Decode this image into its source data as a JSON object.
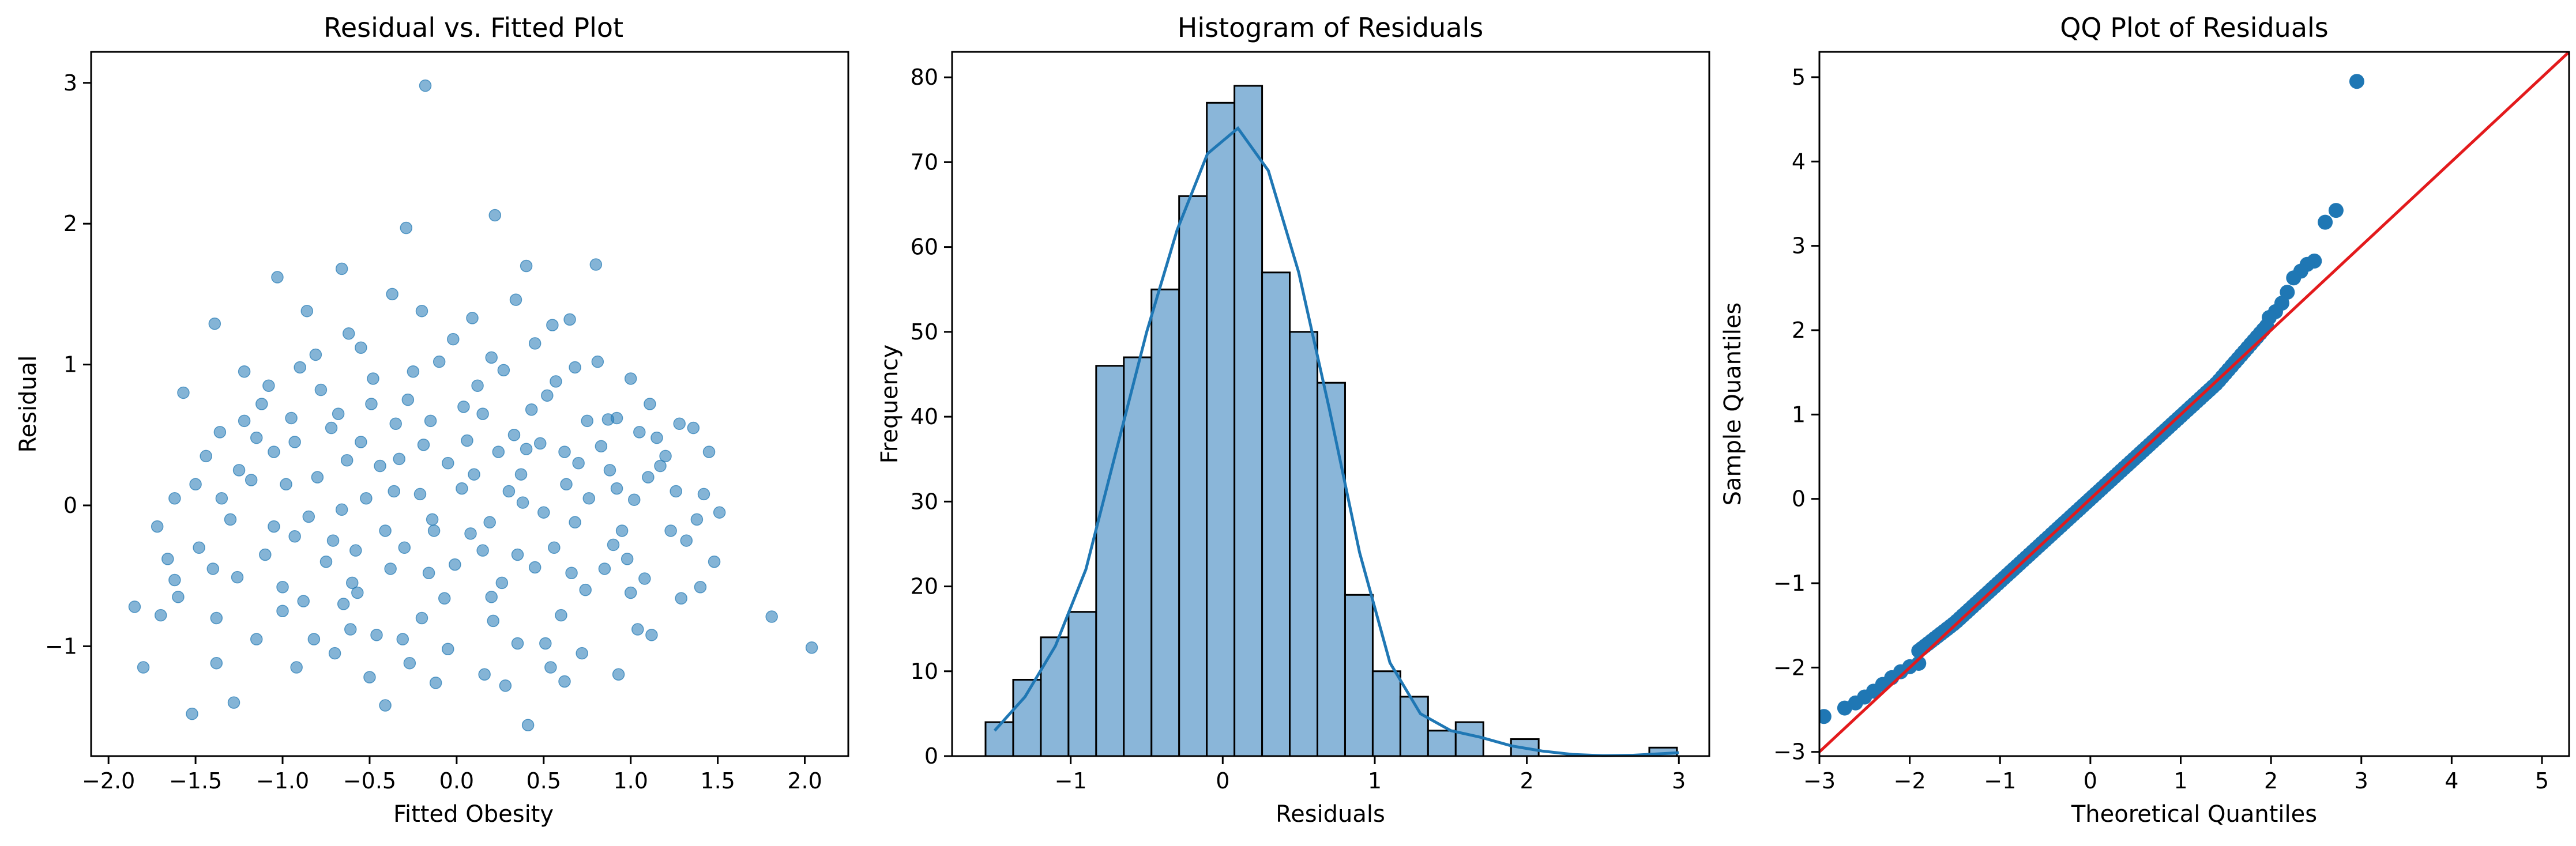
{
  "chart_data": [
    {
      "type": "scatter",
      "title": "Residual vs. Fitted Plot",
      "xlabel": "Fitted Obesity",
      "ylabel": "Residual",
      "xlim": [
        -2.1,
        2.25
      ],
      "ylim": [
        -1.78,
        3.22
      ],
      "xticks": [
        -2.0,
        -1.5,
        -1.0,
        -0.5,
        0.0,
        0.5,
        1.0,
        1.5,
        2.0
      ],
      "xtick_labels": [
        "−2.0",
        "−1.5",
        "−1.0",
        "−0.5",
        "0.0",
        "0.5",
        "1.0",
        "1.5",
        "2.0"
      ],
      "yticks": [
        -1,
        0,
        1,
        2,
        3
      ],
      "ytick_labels": [
        "−1",
        "0",
        "1",
        "2",
        "3"
      ],
      "marker_color": "#1f77b4",
      "marker_alpha": 0.55,
      "grid": false,
      "points": [
        [
          -0.18,
          2.98
        ],
        [
          0.22,
          2.06
        ],
        [
          -0.29,
          1.97
        ],
        [
          0.4,
          1.7
        ],
        [
          -0.66,
          1.68
        ],
        [
          0.8,
          1.71
        ],
        [
          -1.03,
          1.62
        ],
        [
          -1.39,
          1.29
        ],
        [
          -0.37,
          1.5
        ],
        [
          0.09,
          1.33
        ],
        [
          0.65,
          1.32
        ],
        [
          -0.86,
          1.38
        ],
        [
          0.34,
          1.46
        ],
        [
          -1.85,
          -0.72
        ],
        [
          -1.62,
          -0.53
        ],
        [
          1.81,
          -0.79
        ],
        [
          2.04,
          -1.01
        ],
        [
          -1.52,
          -1.48
        ],
        [
          0.41,
          -1.56
        ],
        [
          -0.41,
          -1.42
        ],
        [
          -0.12,
          -1.26
        ],
        [
          -1.38,
          -1.12
        ],
        [
          -1.8,
          -1.15
        ],
        [
          -1.57,
          0.8
        ],
        [
          -1.36,
          0.52
        ],
        [
          -1.62,
          0.05
        ],
        [
          -1.72,
          -0.15
        ],
        [
          -1.66,
          -0.38
        ],
        [
          -1.48,
          -0.3
        ],
        [
          -1.26,
          -0.51
        ],
        [
          -1.22,
          0.95
        ],
        [
          -1.12,
          0.72
        ],
        [
          -1.05,
          0.38
        ],
        [
          -0.98,
          0.15
        ],
        [
          -0.93,
          -0.22
        ],
        [
          -0.88,
          -0.68
        ],
        [
          -0.81,
          1.07
        ],
        [
          -0.72,
          0.55
        ],
        [
          -0.66,
          -0.03
        ],
        [
          -0.61,
          -0.88
        ],
        [
          -0.55,
          1.12
        ],
        [
          -0.49,
          0.72
        ],
        [
          -0.44,
          0.28
        ],
        [
          -0.38,
          -0.45
        ],
        [
          -0.31,
          -0.95
        ],
        [
          -0.25,
          0.95
        ],
        [
          -0.19,
          0.43
        ],
        [
          -0.13,
          -0.18
        ],
        [
          -0.07,
          -0.66
        ],
        [
          -0.02,
          1.18
        ],
        [
          0.04,
          0.7
        ],
        [
          0.1,
          0.22
        ],
        [
          0.15,
          -0.32
        ],
        [
          0.21,
          -0.82
        ],
        [
          0.27,
          0.96
        ],
        [
          0.33,
          0.5
        ],
        [
          0.38,
          0.02
        ],
        [
          0.45,
          -0.44
        ],
        [
          0.51,
          -0.98
        ],
        [
          0.57,
          0.88
        ],
        [
          0.62,
          0.38
        ],
        [
          0.68,
          -0.12
        ],
        [
          0.74,
          -0.6
        ],
        [
          0.81,
          1.02
        ],
        [
          0.87,
          0.61
        ],
        [
          0.92,
          0.12
        ],
        [
          0.98,
          -0.38
        ],
        [
          1.04,
          -0.88
        ],
        [
          1.11,
          0.72
        ],
        [
          1.17,
          0.28
        ],
        [
          1.23,
          -0.18
        ],
        [
          1.29,
          -0.66
        ],
        [
          1.36,
          0.55
        ],
        [
          1.42,
          0.08
        ],
        [
          1.48,
          -0.4
        ],
        [
          1.45,
          0.38
        ],
        [
          1.51,
          -0.05
        ],
        [
          -1.18,
          0.18
        ],
        [
          -0.93,
          0.45
        ],
        [
          -0.71,
          -0.25
        ],
        [
          -0.52,
          0.05
        ],
        [
          -0.33,
          0.33
        ],
        [
          -0.15,
          0.6
        ],
        [
          0.03,
          0.12
        ],
        [
          0.24,
          0.38
        ],
        [
          0.43,
          0.68
        ],
        [
          0.63,
          0.15
        ],
        [
          0.83,
          0.42
        ],
        [
          1.02,
          0.04
        ],
        [
          -1.3,
          -0.1
        ],
        [
          -1.1,
          -0.35
        ],
        [
          -0.85,
          -0.08
        ],
        [
          -0.63,
          0.32
        ],
        [
          -0.41,
          -0.18
        ],
        [
          -0.21,
          0.08
        ],
        [
          -0.01,
          -0.42
        ],
        [
          0.19,
          -0.12
        ],
        [
          0.37,
          0.22
        ],
        [
          0.56,
          -0.3
        ],
        [
          0.76,
          0.05
        ],
        [
          0.95,
          -0.18
        ],
        [
          1.15,
          0.48
        ],
        [
          -1.44,
          0.35
        ],
        [
          -1.22,
          0.6
        ],
        [
          -1.0,
          -0.58
        ],
        [
          -0.78,
          0.82
        ],
        [
          -0.57,
          -0.62
        ],
        [
          -0.35,
          0.58
        ],
        [
          -0.16,
          -0.48
        ],
        [
          0.06,
          0.46
        ],
        [
          0.26,
          -0.55
        ],
        [
          0.48,
          0.44
        ],
        [
          0.66,
          -0.48
        ],
        [
          0.88,
          0.25
        ],
        [
          1.08,
          -0.52
        ],
        [
          1.26,
          0.1
        ],
        [
          -1.6,
          -0.65
        ],
        [
          -1.38,
          -0.8
        ],
        [
          -1.15,
          -0.95
        ],
        [
          -0.92,
          -1.15
        ],
        [
          -0.7,
          -1.05
        ],
        [
          -0.46,
          -0.92
        ],
        [
          -0.27,
          -1.12
        ],
        [
          -0.05,
          -1.02
        ],
        [
          0.16,
          -1.2
        ],
        [
          0.35,
          -0.98
        ],
        [
          0.54,
          -1.15
        ],
        [
          0.72,
          -1.05
        ],
        [
          0.93,
          -1.2
        ],
        [
          1.12,
          -0.92
        ],
        [
          -1.7,
          -0.78
        ],
        [
          -1.28,
          -1.4
        ],
        [
          -0.2,
          1.38
        ],
        [
          0.55,
          1.28
        ],
        [
          -0.62,
          1.22
        ],
        [
          1.0,
          0.9
        ],
        [
          0.45,
          1.15
        ],
        [
          -0.9,
          0.98
        ],
        [
          0.2,
          1.05
        ],
        [
          -0.48,
          0.9
        ],
        [
          1.28,
          0.58
        ],
        [
          -1.25,
          0.25
        ],
        [
          -1.05,
          -0.15
        ],
        [
          -0.8,
          0.2
        ],
        [
          -0.58,
          -0.32
        ],
        [
          -0.36,
          0.1
        ],
        [
          -0.14,
          -0.1
        ],
        [
          0.08,
          -0.2
        ],
        [
          0.3,
          0.1
        ],
        [
          0.5,
          -0.05
        ],
        [
          0.7,
          0.3
        ],
        [
          0.9,
          -0.28
        ],
        [
          1.1,
          0.2
        ],
        [
          1.32,
          -0.25
        ],
        [
          -1.5,
          0.15
        ],
        [
          -1.08,
          0.85
        ],
        [
          -0.68,
          0.65
        ],
        [
          -0.28,
          0.75
        ],
        [
          0.12,
          0.85
        ],
        [
          0.52,
          0.78
        ],
        [
          0.92,
          0.62
        ],
        [
          -1.4,
          -0.45
        ],
        [
          -1.0,
          -0.75
        ],
        [
          -0.6,
          -0.55
        ],
        [
          -0.2,
          -0.8
        ],
        [
          0.2,
          -0.65
        ],
        [
          0.6,
          -0.78
        ],
        [
          1.0,
          -0.62
        ],
        [
          1.4,
          -0.58
        ],
        [
          -0.95,
          0.62
        ],
        [
          -0.75,
          -0.4
        ],
        [
          -0.55,
          0.45
        ],
        [
          -0.05,
          0.3
        ],
        [
          0.35,
          -0.35
        ],
        [
          0.75,
          0.6
        ],
        [
          1.2,
          0.35
        ],
        [
          -1.35,
          0.05
        ],
        [
          -0.65,
          -0.7
        ],
        [
          0.15,
          0.65
        ],
        [
          0.85,
          -0.45
        ],
        [
          -0.3,
          -0.3
        ],
        [
          0.4,
          0.4
        ],
        [
          1.05,
          0.52
        ],
        [
          -0.5,
          -1.22
        ],
        [
          0.62,
          -1.25
        ],
        [
          -0.82,
          -0.95
        ],
        [
          0.28,
          -1.28
        ],
        [
          -0.1,
          1.02
        ],
        [
          0.68,
          0.98
        ],
        [
          -1.15,
          0.48
        ],
        [
          1.38,
          -0.1
        ]
      ]
    },
    {
      "type": "histogram",
      "title": "Histogram of Residuals",
      "xlabel": "Residuals",
      "ylabel": "Frequency",
      "xlim": [
        -1.78,
        3.2
      ],
      "ylim": [
        0,
        83
      ],
      "xticks": [
        -1,
        0,
        1,
        2,
        3
      ],
      "xtick_labels": [
        "−1",
        "0",
        "1",
        "2",
        "3"
      ],
      "yticks": [
        0,
        10,
        20,
        30,
        40,
        50,
        60,
        70,
        80
      ],
      "ytick_labels": [
        "0",
        "10",
        "20",
        "30",
        "40",
        "50",
        "60",
        "70",
        "80"
      ],
      "bin_start": -1.56,
      "bin_width": 0.1819,
      "counts": [
        4,
        9,
        14,
        17,
        46,
        47,
        55,
        66,
        77,
        79,
        57,
        50,
        44,
        19,
        10,
        7,
        3,
        4,
        0,
        2,
        0,
        0,
        0,
        0,
        1
      ],
      "kde": [
        [
          -1.5,
          3
        ],
        [
          -1.3,
          7
        ],
        [
          -1.1,
          13
        ],
        [
          -0.9,
          22
        ],
        [
          -0.7,
          36
        ],
        [
          -0.5,
          50
        ],
        [
          -0.3,
          62
        ],
        [
          -0.1,
          71
        ],
        [
          0.1,
          74
        ],
        [
          0.3,
          69
        ],
        [
          0.5,
          57
        ],
        [
          0.7,
          41
        ],
        [
          0.9,
          24
        ],
        [
          1.1,
          11
        ],
        [
          1.3,
          5
        ],
        [
          1.5,
          3
        ],
        [
          1.7,
          2.2
        ],
        [
          1.9,
          1.2
        ],
        [
          2.1,
          0.6
        ],
        [
          2.3,
          0.2
        ],
        [
          2.5,
          0.05
        ],
        [
          2.7,
          0.1
        ],
        [
          2.9,
          0.3
        ],
        [
          3.0,
          0.4
        ]
      ],
      "bar_color": "#8ab6d9",
      "edge_color": "#000000",
      "line_color": "#1f77b4",
      "grid": false
    },
    {
      "type": "scatter",
      "title": "QQ Plot of Residuals",
      "xlabel": "Theoretical Quantiles",
      "ylabel": "Sample Quantiles",
      "xlim": [
        -3.0,
        5.3
      ],
      "ylim": [
        -3.05,
        5.3
      ],
      "xticks": [
        -3,
        -2,
        -1,
        0,
        1,
        2,
        3,
        4,
        5
      ],
      "xtick_labels": [
        "−3",
        "−2",
        "−1",
        "0",
        "1",
        "2",
        "3",
        "4",
        "5"
      ],
      "yticks": [
        -3,
        -2,
        -1,
        0,
        1,
        2,
        3,
        4,
        5
      ],
      "ytick_labels": [
        "−3",
        "−2",
        "−1",
        "0",
        "1",
        "2",
        "3",
        "4",
        "5"
      ],
      "reference_line": [
        [
          -3.0,
          -3.0
        ],
        [
          5.3,
          5.3
        ]
      ],
      "marker_color": "#1f77b4",
      "line_color": "#e31a1c",
      "grid": false,
      "points": [
        [
          2.95,
          4.95
        ],
        [
          2.72,
          3.42
        ],
        [
          2.6,
          3.28
        ],
        [
          2.48,
          2.82
        ],
        [
          2.4,
          2.78
        ],
        [
          2.33,
          2.7
        ],
        [
          2.25,
          2.62
        ],
        [
          2.18,
          2.45
        ],
        [
          2.12,
          2.32
        ],
        [
          2.05,
          2.22
        ],
        [
          1.98,
          2.15
        ],
        [
          -2.95,
          -2.58
        ],
        [
          -2.72,
          -2.48
        ],
        [
          -2.6,
          -2.42
        ],
        [
          -2.5,
          -2.35
        ],
        [
          -2.4,
          -2.28
        ],
        [
          -2.3,
          -2.2
        ],
        [
          -2.2,
          -2.12
        ],
        [
          -2.1,
          -2.05
        ],
        [
          -2.0,
          -1.99
        ],
        [
          -1.9,
          -1.95
        ]
      ]
    }
  ]
}
